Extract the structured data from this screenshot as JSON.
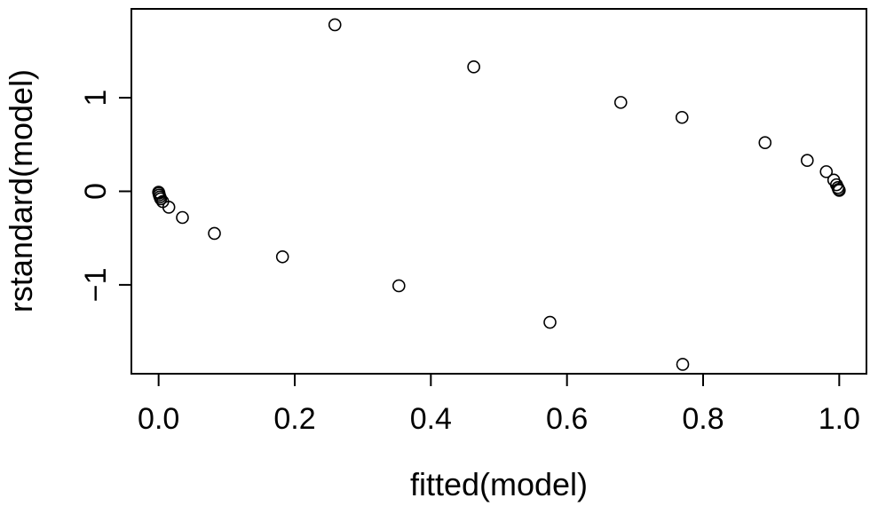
{
  "chart_data": {
    "type": "scatter",
    "title": "",
    "xlabel": "fitted(model)",
    "ylabel": "rstandard(model)",
    "xlim": [
      -0.04,
      1.04
    ],
    "ylim": [
      -1.95,
      1.95
    ],
    "x_ticks": [
      0.0,
      0.2,
      0.4,
      0.6,
      0.8,
      1.0
    ],
    "x_tick_labels": [
      "0.0",
      "0.2",
      "0.4",
      "0.6",
      "0.8",
      "1.0"
    ],
    "y_ticks": [
      -1,
      0,
      1
    ],
    "y_tick_labels": [
      "−1",
      "0",
      "1"
    ],
    "grid": false,
    "legend": "none",
    "marker": "open-circle",
    "colors": {
      "point_stroke": "#000000",
      "axis": "#000000",
      "background": "#ffffff"
    },
    "x": [
      0.0,
      0.0005,
      0.001,
      0.002,
      0.003,
      0.006,
      0.015,
      0.035,
      0.082,
      0.182,
      0.259,
      0.353,
      0.463,
      0.575,
      0.679,
      0.769,
      0.77,
      0.891,
      0.953,
      0.981,
      0.992,
      0.996,
      0.998,
      0.999,
      1.0
    ],
    "y": [
      -0.01,
      -0.02,
      -0.04,
      -0.06,
      -0.08,
      -0.11,
      -0.17,
      -0.28,
      -0.45,
      -0.7,
      1.78,
      -1.01,
      1.33,
      -1.4,
      0.95,
      0.79,
      -1.85,
      0.52,
      0.33,
      0.21,
      0.12,
      0.07,
      0.04,
      0.02,
      0.01
    ]
  }
}
